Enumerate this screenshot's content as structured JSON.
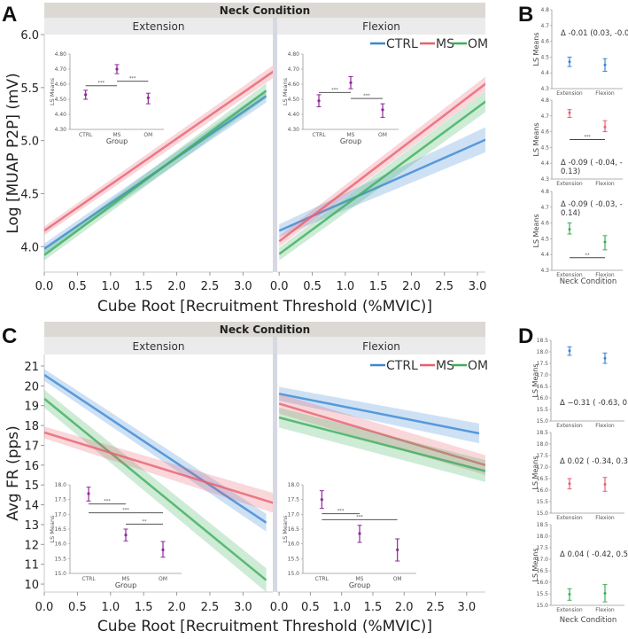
{
  "colors": {
    "CTRL": "#3a87d4",
    "MS": "#e8606e",
    "OM": "#3cae5a",
    "inset": "#8e2a9a"
  },
  "legend": [
    "CTRL",
    "MS",
    "OM"
  ],
  "chart_data": [
    {
      "id": "A",
      "type": "line",
      "panel_label": "A",
      "strip_title": "Neck Condition",
      "facets": [
        "Extension",
        "Flexion"
      ],
      "xlabel": "Cube Root [Recruitment Threshold (%MVIC)]",
      "ylabel": "Log [MUAP P2P] (mV)",
      "xlim": {
        "Extension": [
          0,
          3.45
        ],
        "Flexion": [
          -0.03,
          3.12
        ]
      },
      "ylim": [
        3.76,
        6.0
      ],
      "xticks": [
        0,
        0.5,
        1,
        1.5,
        2,
        2.5,
        3
      ],
      "xtick_labels": [
        "0.0",
        "0.5",
        "1.0",
        "1.5",
        "2.0",
        "2.5",
        "3.0"
      ],
      "yticks": [
        4,
        4.5,
        5,
        5.5,
        6
      ],
      "ytick_labels": [
        "4.0",
        "4.5",
        "5.0",
        "5.5",
        "6.0"
      ],
      "series": {
        "Extension": [
          {
            "name": "CTRL",
            "x": [
              0,
              3.35
            ],
            "y": [
              3.98,
              5.42
            ],
            "ci": [
              0.05,
              0.06
            ]
          },
          {
            "name": "OM",
            "x": [
              0,
              3.35
            ],
            "y": [
              3.92,
              5.47
            ],
            "ci": [
              0.05,
              0.07
            ]
          },
          {
            "name": "MS",
            "x": [
              0,
              3.5
            ],
            "y": [
              4.15,
              5.67
            ],
            "ci": [
              0.04,
              0.06
            ]
          }
        ],
        "Flexion": [
          {
            "name": "CTRL",
            "x": [
              0,
              3.2
            ],
            "y": [
              4.15,
              5.03
            ],
            "ci": [
              0.06,
              0.12
            ]
          },
          {
            "name": "OM",
            "x": [
              0,
              3.3
            ],
            "y": [
              3.93,
              5.45
            ],
            "ci": [
              0.06,
              0.1
            ]
          },
          {
            "name": "MS",
            "x": [
              0,
              3.3
            ],
            "y": [
              4.05,
              5.62
            ],
            "ci": [
              0.05,
              0.07
            ]
          }
        ]
      },
      "insets": {
        "Extension": {
          "ylabel": "LS Means",
          "xlabel": "Group",
          "categories": [
            "CTRL",
            "MS",
            "OM"
          ],
          "ylim": [
            4.3,
            4.8
          ],
          "yticks": [
            4.3,
            4.4,
            4.5,
            4.6,
            4.7,
            4.8
          ],
          "ytick_labels": [
            "4.30",
            "4.40",
            "4.50",
            "4.60",
            "4.70",
            "4.80"
          ],
          "means": [
            4.53,
            4.7,
            4.51
          ],
          "lower": [
            4.5,
            4.67,
            4.47
          ],
          "upper": [
            4.56,
            4.73,
            4.54
          ],
          "sig": [
            {
              "from": 0,
              "to": 1,
              "y": 4.59,
              "label": "***"
            },
            {
              "from": 1,
              "to": 2,
              "y": 4.62,
              "label": "***"
            }
          ]
        },
        "Flexion": {
          "ylabel": "LS Means",
          "xlabel": "Group",
          "categories": [
            "CTRL",
            "MS",
            "OM"
          ],
          "ylim": [
            4.3,
            4.8
          ],
          "yticks": [
            4.3,
            4.4,
            4.5,
            4.6,
            4.7,
            4.8
          ],
          "ytick_labels": [
            "4.30",
            "4.40",
            "4.50",
            "4.60",
            "4.70",
            "4.80"
          ],
          "means": [
            4.49,
            4.61,
            4.43
          ],
          "lower": [
            4.45,
            4.57,
            4.38
          ],
          "upper": [
            4.53,
            4.65,
            4.47
          ],
          "sig": [
            {
              "from": 0,
              "to": 1,
              "y": 4.545,
              "label": "***"
            },
            {
              "from": 1,
              "to": 2,
              "y": 4.505,
              "label": "***"
            }
          ]
        }
      }
    },
    {
      "id": "C",
      "type": "line",
      "panel_label": "C",
      "strip_title": "Neck Condition",
      "facets": [
        "Extension",
        "Flexion"
      ],
      "xlabel": "Cube Root [Recruitment Threshold (%MVIC)]",
      "ylabel": "Avg FR (pps)",
      "xlim": {
        "Extension": [
          0,
          3.45
        ],
        "Flexion": [
          -0.03,
          3.3
        ]
      },
      "ylim": [
        9.6,
        21.58
      ],
      "xticks": [
        0,
        0.5,
        1,
        1.5,
        2,
        2.5,
        3
      ],
      "xtick_labels": [
        "0.0",
        "0.5",
        "1.0",
        "1.5",
        "2.0",
        "2.5",
        "3.0"
      ],
      "yticks": [
        10,
        11,
        12,
        13,
        14,
        15,
        16,
        17,
        18,
        19,
        20,
        21
      ],
      "ytick_labels": [
        "10",
        "11",
        "12",
        "13",
        "14",
        "15",
        "16",
        "17",
        "18",
        "19",
        "20",
        "21"
      ],
      "series": {
        "Extension": [
          {
            "name": "CTRL",
            "x": [
              0,
              3.35
            ],
            "y": [
              20.55,
              13.1
            ],
            "ci": [
              0.3,
              0.45
            ]
          },
          {
            "name": "OM",
            "x": [
              0,
              3.35
            ],
            "y": [
              19.35,
              10.2
            ],
            "ci": [
              0.45,
              0.6
            ]
          },
          {
            "name": "MS",
            "x": [
              0,
              3.5
            ],
            "y": [
              17.65,
              14.05
            ],
            "ci": [
              0.3,
              0.5
            ]
          }
        ],
        "Flexion": [
          {
            "name": "CTRL",
            "x": [
              0,
              3.2
            ],
            "y": [
              19.6,
              17.6
            ],
            "ci": [
              0.35,
              0.5
            ]
          },
          {
            "name": "MS",
            "x": [
              0,
              3.3
            ],
            "y": [
              19.1,
              16.0
            ],
            "ci": [
              0.5,
              0.5
            ]
          },
          {
            "name": "OM",
            "x": [
              0,
              3.3
            ],
            "y": [
              18.4,
              15.7
            ],
            "ci": [
              0.5,
              0.55
            ]
          }
        ]
      },
      "insets": {
        "Extension": {
          "ylabel": "LS Means",
          "xlabel": "Group",
          "categories": [
            "CTRL",
            "MS",
            "OM"
          ],
          "ylim": [
            15,
            18
          ],
          "yticks": [
            15,
            15.5,
            16,
            16.5,
            17,
            17.5,
            18
          ],
          "ytick_labels": [
            "15.0",
            "15.5",
            "16.0",
            "16.5",
            "17.0",
            "17.5",
            "18.0"
          ],
          "means": [
            17.7,
            16.3,
            15.8
          ],
          "lower": [
            17.45,
            16.1,
            15.55
          ],
          "upper": [
            17.92,
            16.5,
            16.08
          ],
          "sig": [
            {
              "from": 0,
              "to": 1,
              "y": 17.35,
              "label": "***"
            },
            {
              "from": 0,
              "to": 2,
              "y": 17.05,
              "label": "***"
            },
            {
              "from": 1,
              "to": 2,
              "y": 16.67,
              "label": "**"
            }
          ]
        },
        "Flexion": {
          "ylabel": "LS Means",
          "xlabel": "Group",
          "categories": [
            "CTRL",
            "MS",
            "OM"
          ],
          "ylim": [
            15,
            18
          ],
          "yticks": [
            15,
            15.5,
            16,
            16.5,
            17,
            17.5,
            18
          ],
          "ytick_labels": [
            "15.0",
            "15.5",
            "16.0",
            "16.5",
            "17.0",
            "17.5",
            "18.0"
          ],
          "means": [
            17.5,
            16.35,
            15.8
          ],
          "lower": [
            17.2,
            16.05,
            15.42
          ],
          "upper": [
            17.8,
            16.63,
            16.17
          ],
          "sig": [
            {
              "from": 0,
              "to": 1,
              "y": 17.02,
              "label": "***"
            },
            {
              "from": 0,
              "to": 2,
              "y": 16.82,
              "label": "***"
            }
          ]
        }
      }
    },
    {
      "id": "B",
      "type": "scatter",
      "panel_label": "B",
      "xlabel": "Neck Condition",
      "ylabel": "LS Means",
      "categories": [
        "Extension",
        "Flexion"
      ],
      "ylim": [
        4.3,
        4.8
      ],
      "yticks": [
        4.3,
        4.4,
        4.5,
        4.6,
        4.7,
        4.8
      ],
      "ytick_labels": [
        "4.3",
        "4.4",
        "4.5",
        "4.6",
        "4.7",
        "4.8"
      ],
      "panels": [
        {
          "group": "CTRL",
          "means": [
            4.47,
            4.45
          ],
          "lower": [
            4.44,
            4.41
          ],
          "upper": [
            4.5,
            4.49
          ],
          "delta_lines": [
            "Δ -0.01 (0.03,  -0.07)"
          ],
          "sig": null
        },
        {
          "group": "MS",
          "means": [
            4.72,
            4.63
          ],
          "lower": [
            4.69,
            4.6
          ],
          "upper": [
            4.74,
            4.67
          ],
          "delta_lines": [
            "Δ -0.09 ( -0.04, -",
            "0.13)"
          ],
          "sig": {
            "y": 4.55,
            "label": "***"
          }
        },
        {
          "group": "OM",
          "means": [
            4.56,
            4.48
          ],
          "lower": [
            4.53,
            4.43
          ],
          "upper": [
            4.6,
            4.52
          ],
          "delta_lines": [
            "Δ -0.09 ( -0.03, -",
            "0.14)"
          ],
          "sig": {
            "y": 4.38,
            "label": "**"
          }
        }
      ]
    },
    {
      "id": "D",
      "type": "scatter",
      "panel_label": "D",
      "xlabel": "Neck Condition",
      "ylabel": "LS Means",
      "categories": [
        "Extension",
        "Flexion"
      ],
      "ylim": [
        15.0,
        18.5
      ],
      "yticks": [
        15,
        15.5,
        16,
        16.5,
        17,
        17.5,
        18,
        18.5
      ],
      "ytick_labels": [
        "15.0",
        "15.5",
        "16.0",
        "16.5",
        "17.0",
        "17.5",
        "18.0",
        "18.5"
      ],
      "panels": [
        {
          "group": "CTRL",
          "means": [
            18.05,
            17.72
          ],
          "lower": [
            17.85,
            17.5
          ],
          "upper": [
            18.22,
            17.95
          ],
          "delta_lines": [
            "Δ −0.31 ( -0.63, 0.00)"
          ],
          "sig": null
        },
        {
          "group": "MS",
          "means": [
            16.28,
            16.25
          ],
          "lower": [
            16.05,
            15.95
          ],
          "upper": [
            16.5,
            16.55
          ],
          "delta_lines": [
            "Δ 0.02 ( -0.34, 0.39)"
          ],
          "sig": null
        },
        {
          "group": "OM",
          "means": [
            15.48,
            15.52
          ],
          "lower": [
            15.22,
            15.15
          ],
          "upper": [
            15.72,
            15.9
          ],
          "delta_lines": [
            "Δ 0.04 ( -0.42, 0.51)"
          ],
          "sig": null
        }
      ]
    }
  ]
}
